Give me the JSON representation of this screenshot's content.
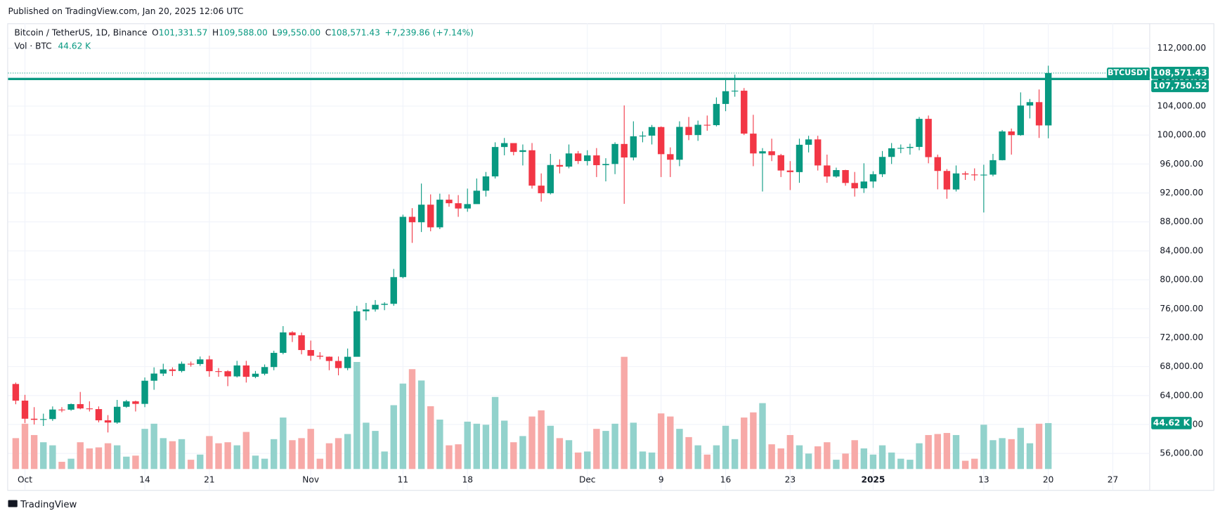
{
  "chart_data": {
    "type": "candlestick",
    "published": "Published on TradingView.com, Jan 20, 2025 12:06 UTC",
    "title": "Bitcoin / TetherUS, 1D, Binance",
    "legend": {
      "o_key": "O",
      "o": "101,331.57",
      "h_key": "H",
      "h": "109,588.00",
      "l_key": "L",
      "l": "99,550.00",
      "c_key": "C",
      "c": "108,571.43",
      "change": "+7,239.86 (+7.14%)",
      "vol_key": "Vol · BTC",
      "vol": "44.62 K"
    },
    "brand": "TradingView",
    "x": [
      "2024-09-30",
      "2024-10-01",
      "2024-10-02",
      "2024-10-03",
      "2024-10-04",
      "2024-10-05",
      "2024-10-06",
      "2024-10-07",
      "2024-10-08",
      "2024-10-09",
      "2024-10-10",
      "2024-10-11",
      "2024-10-12",
      "2024-10-13",
      "2024-10-14",
      "2024-10-15",
      "2024-10-16",
      "2024-10-17",
      "2024-10-18",
      "2024-10-19",
      "2024-10-20",
      "2024-10-21",
      "2024-10-22",
      "2024-10-23",
      "2024-10-24",
      "2024-10-25",
      "2024-10-26",
      "2024-10-27",
      "2024-10-28",
      "2024-10-29",
      "2024-10-30",
      "2024-10-31",
      "2024-11-01",
      "2024-11-02",
      "2024-11-03",
      "2024-11-04",
      "2024-11-05",
      "2024-11-06",
      "2024-11-07",
      "2024-11-08",
      "2024-11-09",
      "2024-11-10",
      "2024-11-11",
      "2024-11-12",
      "2024-11-13",
      "2024-11-14",
      "2024-11-15",
      "2024-11-16",
      "2024-11-17",
      "2024-11-18",
      "2024-11-19",
      "2024-11-20",
      "2024-11-21",
      "2024-11-22",
      "2024-11-23",
      "2024-11-24",
      "2024-11-25",
      "2024-11-26",
      "2024-11-27",
      "2024-11-28",
      "2024-11-29",
      "2024-11-30",
      "2024-12-01",
      "2024-12-02",
      "2024-12-03",
      "2024-12-04",
      "2024-12-05",
      "2024-12-06",
      "2024-12-07",
      "2024-12-08",
      "2024-12-09",
      "2024-12-10",
      "2024-12-11",
      "2024-12-12",
      "2024-12-13",
      "2024-12-14",
      "2024-12-15",
      "2024-12-16",
      "2024-12-17",
      "2024-12-18",
      "2024-12-19",
      "2024-12-20",
      "2024-12-21",
      "2024-12-22",
      "2024-12-23",
      "2024-12-24",
      "2024-12-25",
      "2024-12-26",
      "2024-12-27",
      "2024-12-28",
      "2024-12-29",
      "2024-12-30",
      "2024-12-31",
      "2025-01-01",
      "2025-01-02",
      "2025-01-03",
      "2025-01-04",
      "2025-01-05",
      "2025-01-06",
      "2025-01-07",
      "2025-01-08",
      "2025-01-09",
      "2025-01-10",
      "2025-01-11",
      "2025-01-12",
      "2025-01-13",
      "2025-01-14",
      "2025-01-15",
      "2025-01-16",
      "2025-01-17",
      "2025-01-18",
      "2025-01-19",
      "2025-01-20"
    ],
    "open": [
      65600,
      63300,
      60800,
      60650,
      60750,
      62070,
      62050,
      62820,
      62220,
      62130,
      60580,
      60270,
      62450,
      63200,
      62850,
      66050,
      67040,
      67610,
      67400,
      68400,
      68360,
      69000,
      67370,
      67360,
      66650,
      68160,
      66590,
      67020,
      67940,
      69900,
      72730,
      72330,
      70290,
      69500,
      69370,
      68780,
      67800,
      69360,
      75640,
      75900,
      76540,
      76680,
      80370,
      88700,
      87950,
      90380,
      87250,
      91070,
      90580,
      89850,
      90460,
      92310,
      94290,
      98350,
      98890,
      97670,
      97900,
      93010,
      91960,
      95860,
      95640,
      97460,
      96410,
      97190,
      95840,
      96000,
      98770,
      96900,
      99830,
      99920,
      101110,
      97360,
      96590,
      101130,
      100000,
      101420,
      101370,
      104300,
      106060,
      106130,
      100200,
      97460,
      97760,
      97220,
      95100,
      94880,
      98660,
      99400,
      95800,
      94270,
      95160,
      93380,
      92640,
      93580,
      94590,
      96980,
      98170,
      98220,
      98360,
      102240,
      96950,
      95040,
      92480,
      94700,
      94550,
      94510,
      94530,
      96530,
      100500,
      99990,
      104080,
      104550,
      101331.57
    ],
    "high": [
      65800,
      64100,
      62400,
      61500,
      62500,
      62400,
      62900,
      64500,
      63200,
      62500,
      61300,
      63400,
      63400,
      63300,
      66500,
      67900,
      68400,
      67900,
      68700,
      68700,
      69400,
      69500,
      67800,
      67500,
      68800,
      68800,
      67400,
      68300,
      70200,
      73600,
      72900,
      72700,
      71600,
      70000,
      69400,
      69400,
      70500,
      76400,
      76800,
      77200,
      76900,
      81500,
      89000,
      89900,
      93300,
      91800,
      91900,
      91800,
      91700,
      92600,
      94000,
      94900,
      99000,
      99600,
      98800,
      98700,
      98900,
      94700,
      97400,
      96650,
      98700,
      97800,
      97900,
      98200,
      96800,
      99000,
      104100,
      101900,
      100500,
      101400,
      101200,
      98300,
      101900,
      102500,
      102000,
      102700,
      105200,
      107800,
      108350,
      106500,
      102800,
      98200,
      99500,
      97400,
      96400,
      99500,
      99900,
      99900,
      97300,
      95500,
      95200,
      94900,
      96100,
      95000,
      97800,
      98900,
      98700,
      98800,
      102500,
      102700,
      97300,
      95300,
      95800,
      95000,
      95400,
      95900,
      97400,
      100700,
      100900,
      105900,
      104990,
      106300,
      109588
    ],
    "low": [
      62800,
      60200,
      60000,
      59800,
      60500,
      61700,
      61900,
      62100,
      61800,
      60300,
      58900,
      60100,
      62300,
      61800,
      62400,
      64800,
      66700,
      66700,
      67200,
      68000,
      68100,
      66600,
      66600,
      65300,
      66500,
      65800,
      66400,
      66800,
      67500,
      69700,
      71400,
      69700,
      68800,
      69000,
      67500,
      66800,
      67500,
      69400,
      74400,
      75600,
      75800,
      76400,
      80200,
      85100,
      86600,
      86700,
      87000,
      90100,
      88700,
      89400,
      90900,
      91500,
      94000,
      97200,
      97200,
      95800,
      92600,
      90800,
      91800,
      94700,
      95400,
      96000,
      95800,
      94200,
      93600,
      94600,
      90500,
      96500,
      99000,
      98700,
      94200,
      94200,
      95700,
      99300,
      99200,
      100600,
      101200,
      103300,
      105300,
      100000,
      95700,
      92200,
      96400,
      94200,
      92400,
      93400,
      97600,
      95100,
      93400,
      94100,
      93000,
      91500,
      92000,
      92700,
      94200,
      96000,
      97500,
      97300,
      97900,
      96100,
      92500,
      91200,
      92200,
      93800,
      93700,
      89300,
      94300,
      96500,
      97300,
      99900,
      102300,
      99600,
      99550
    ],
    "close": [
      63300,
      60800,
      60650,
      60750,
      62070,
      62050,
      62820,
      62220,
      62130,
      60580,
      60270,
      62450,
      63200,
      62850,
      66050,
      67040,
      67610,
      67400,
      68400,
      68360,
      69000,
      67370,
      67360,
      66650,
      68160,
      66590,
      67020,
      67940,
      69900,
      72730,
      72330,
      70290,
      69500,
      69370,
      68780,
      67800,
      69360,
      75640,
      75900,
      76540,
      76680,
      80370,
      88700,
      87950,
      90380,
      87250,
      91070,
      90580,
      89850,
      90460,
      92310,
      94290,
      98350,
      98890,
      97670,
      97900,
      93010,
      91960,
      95860,
      95640,
      97460,
      96410,
      97190,
      95840,
      96000,
      98770,
      96900,
      99830,
      99920,
      101110,
      97360,
      96590,
      101130,
      100000,
      101420,
      101370,
      104300,
      106060,
      106130,
      100200,
      97460,
      97760,
      97220,
      95100,
      94880,
      98660,
      99400,
      95800,
      94270,
      95160,
      93380,
      92640,
      93580,
      94590,
      96980,
      98170,
      98220,
      98360,
      102240,
      96950,
      95040,
      92480,
      94700,
      94550,
      94510,
      94530,
      96530,
      100500,
      99990,
      104080,
      104550,
      101331.57,
      108571.43
    ],
    "volume": [
      30,
      44,
      33,
      26,
      23,
      7,
      10,
      26,
      20,
      21,
      25,
      23,
      12,
      13,
      39,
      44,
      30,
      27,
      29,
      9,
      14,
      32,
      25,
      26,
      23,
      36,
      13,
      10,
      29,
      50,
      28,
      30,
      39,
      10,
      25,
      30,
      34,
      104,
      45,
      37,
      17,
      62,
      83,
      97,
      86,
      61,
      48,
      23,
      24,
      46,
      44,
      43,
      70,
      47,
      26,
      32,
      51,
      57,
      42,
      30,
      28,
      16,
      17,
      39,
      37,
      44,
      109,
      45,
      17,
      16,
      54,
      51,
      39,
      31,
      23,
      14,
      23,
      42,
      29,
      50,
      55,
      64,
      24,
      20,
      33,
      23,
      15,
      22,
      26,
      9,
      15,
      28,
      20,
      14,
      23,
      16,
      10,
      9,
      25,
      33,
      34,
      35,
      33,
      8,
      10,
      43,
      28,
      30,
      29,
      40,
      25,
      44,
      44.62
    ],
    "xlim": [
      "2024-09-29",
      "2025-01-31"
    ],
    "xticks": [
      {
        "value": "2024-10-01",
        "label": "Oct"
      },
      {
        "value": "2024-10-14",
        "label": "14"
      },
      {
        "value": "2024-10-21",
        "label": "21"
      },
      {
        "value": "2024-11-01",
        "label": "Nov"
      },
      {
        "value": "2024-11-11",
        "label": "11"
      },
      {
        "value": "2024-11-18",
        "label": "18"
      },
      {
        "value": "2024-12-01",
        "label": "Dec"
      },
      {
        "value": "2024-12-09",
        "label": "9"
      },
      {
        "value": "2024-12-16",
        "label": "16"
      },
      {
        "value": "2024-12-23",
        "label": "23"
      },
      {
        "value": "2025-01-01",
        "label": "2025"
      },
      {
        "value": "2025-01-13",
        "label": "13"
      },
      {
        "value": "2025-01-20",
        "label": "20"
      },
      {
        "value": "2025-01-27",
        "label": "27"
      }
    ],
    "ylim": [
      50950,
      115440
    ],
    "yticks": [
      {
        "value": 56000,
        "label": "56,000.00"
      },
      {
        "value": 60000,
        "label": "60,000.00"
      },
      {
        "value": 64000,
        "label": "64,000.00"
      },
      {
        "value": 68000,
        "label": "68,000.00"
      },
      {
        "value": 72000,
        "label": "72,000.00"
      },
      {
        "value": 76000,
        "label": "76,000.00"
      },
      {
        "value": 80000,
        "label": "80,000.00"
      },
      {
        "value": 84000,
        "label": "84,000.00"
      },
      {
        "value": 88000,
        "label": "88,000.00"
      },
      {
        "value": 92000,
        "label": "92,000.00"
      },
      {
        "value": 96000,
        "label": "96,000.00"
      },
      {
        "value": 100000,
        "label": "100,000.00"
      },
      {
        "value": 104000,
        "label": "104,000.00"
      },
      {
        "value": 108000,
        "label": "108,000.00"
      },
      {
        "value": 112000,
        "label": "112,000.00"
      }
    ],
    "vlim": [
      0,
      433
    ],
    "grid": true,
    "colors": {
      "up": "#089981",
      "down": "#f23645",
      "up_volume": "#92d2cc",
      "down_volume": "#f7a9a7",
      "line": "#089981"
    },
    "last_price": {
      "name": "BTCUSDT",
      "value": 108571.43,
      "label": "108,571.43"
    },
    "horizontal_line": {
      "value": 107750.52,
      "label": "107,750.52"
    }
  }
}
